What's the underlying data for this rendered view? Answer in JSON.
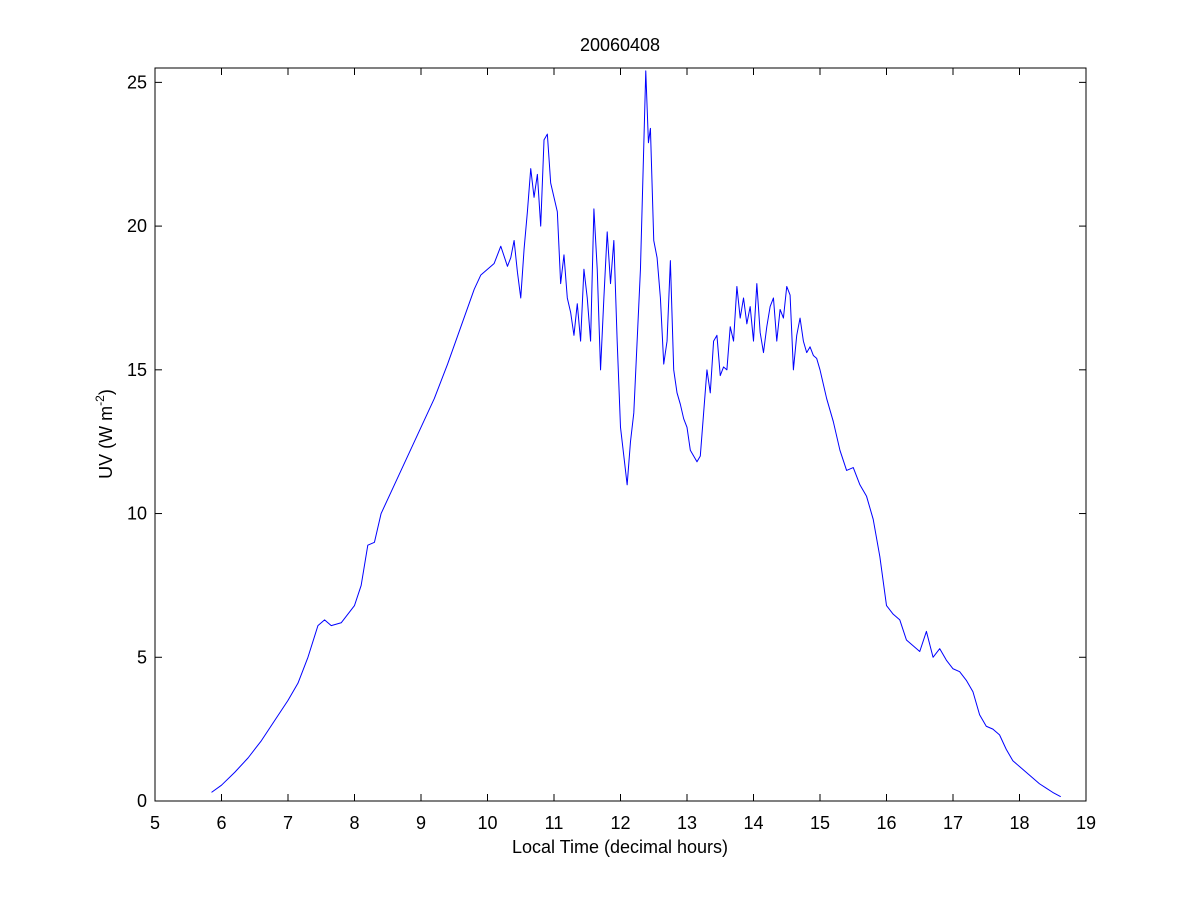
{
  "chart_data": {
    "type": "line",
    "title": "20060408",
    "xlabel": "Local Time (decimal hours)",
    "ylabel_main": "UV (W m",
    "ylabel_sup": "-2",
    "ylabel_close": ")",
    "xlim": [
      5,
      19
    ],
    "ylim": [
      0,
      25.5
    ],
    "xticks": [
      5,
      6,
      7,
      8,
      9,
      10,
      11,
      12,
      13,
      14,
      15,
      16,
      17,
      18,
      19
    ],
    "yticks": [
      0,
      5,
      10,
      15,
      20,
      25
    ],
    "grid": false,
    "line_color": "#0000ff",
    "series": [
      {
        "x": [
          5.85,
          6.0,
          6.2,
          6.4,
          6.6,
          6.8,
          7.0,
          7.15,
          7.3,
          7.45,
          7.55,
          7.65,
          7.8,
          7.9,
          8.0,
          8.1,
          8.2,
          8.3,
          8.4,
          8.6,
          8.8,
          9.0,
          9.2,
          9.4,
          9.6,
          9.8,
          9.9,
          10.0,
          10.1,
          10.2,
          10.3,
          10.35,
          10.4,
          10.45,
          10.5,
          10.55,
          10.6,
          10.65,
          10.7,
          10.75,
          10.8,
          10.85,
          10.9,
          10.95,
          11.0,
          11.05,
          11.1,
          11.15,
          11.2,
          11.25,
          11.3,
          11.35,
          11.4,
          11.45,
          11.5,
          11.55,
          11.6,
          11.65,
          11.7,
          11.75,
          11.8,
          11.85,
          11.9,
          11.95,
          12.0,
          12.05,
          12.1,
          12.15,
          12.2,
          12.25,
          12.3,
          12.35,
          12.38,
          12.42,
          12.45,
          12.5,
          12.55,
          12.6,
          12.65,
          12.7,
          12.75,
          12.8,
          12.85,
          12.9,
          12.95,
          13.0,
          13.05,
          13.1,
          13.15,
          13.2,
          13.25,
          13.3,
          13.35,
          13.4,
          13.45,
          13.5,
          13.55,
          13.6,
          13.65,
          13.7,
          13.75,
          13.8,
          13.85,
          13.9,
          13.95,
          14.0,
          14.05,
          14.1,
          14.15,
          14.2,
          14.25,
          14.3,
          14.35,
          14.4,
          14.45,
          14.5,
          14.55,
          14.6,
          14.65,
          14.7,
          14.75,
          14.8,
          14.85,
          14.9,
          14.95,
          15.0,
          15.1,
          15.2,
          15.3,
          15.4,
          15.5,
          15.6,
          15.7,
          15.8,
          15.9,
          16.0,
          16.1,
          16.2,
          16.3,
          16.4,
          16.5,
          16.6,
          16.7,
          16.8,
          16.9,
          17.0,
          17.1,
          17.2,
          17.3,
          17.4,
          17.5,
          17.6,
          17.7,
          17.8,
          17.9,
          18.0,
          18.1,
          18.2,
          18.3,
          18.4,
          18.5,
          18.62
        ],
        "y": [
          0.3,
          0.55,
          1.0,
          1.5,
          2.1,
          2.8,
          3.5,
          4.1,
          5.0,
          6.1,
          6.3,
          6.1,
          6.2,
          6.5,
          6.8,
          7.5,
          8.9,
          9.0,
          10.0,
          11.0,
          12.0,
          13.0,
          14.0,
          15.2,
          16.5,
          17.8,
          18.3,
          18.5,
          18.7,
          19.3,
          18.6,
          18.9,
          19.5,
          18.4,
          17.5,
          19.2,
          20.5,
          22.0,
          21.0,
          21.8,
          20.0,
          23.0,
          23.2,
          21.5,
          21.0,
          20.5,
          18.0,
          19.0,
          17.5,
          17.0,
          16.2,
          17.3,
          16.0,
          18.5,
          17.5,
          16.0,
          20.6,
          18.5,
          15.0,
          17.5,
          19.8,
          18.0,
          19.5,
          16.0,
          13.0,
          12.0,
          11.0,
          12.5,
          13.5,
          16.0,
          18.5,
          22.8,
          25.4,
          22.9,
          23.4,
          19.5,
          18.9,
          17.5,
          15.2,
          16.0,
          18.8,
          15.0,
          14.2,
          13.8,
          13.3,
          13.0,
          12.2,
          12.0,
          11.8,
          12.0,
          13.5,
          15.0,
          14.2,
          16.0,
          16.2,
          14.8,
          15.1,
          15.0,
          16.5,
          16.0,
          17.9,
          16.8,
          17.5,
          16.6,
          17.2,
          16.0,
          18.0,
          16.3,
          15.6,
          16.5,
          17.2,
          17.5,
          16.0,
          17.1,
          16.8,
          17.9,
          17.6,
          15.0,
          16.2,
          16.8,
          16.0,
          15.6,
          15.8,
          15.5,
          15.4,
          15.0,
          14.0,
          13.2,
          12.2,
          11.5,
          11.6,
          11.0,
          10.6,
          9.8,
          8.5,
          6.8,
          6.5,
          6.3,
          5.6,
          5.4,
          5.2,
          5.9,
          5.0,
          5.3,
          4.9,
          4.6,
          4.5,
          4.2,
          3.8,
          3.0,
          2.6,
          2.5,
          2.3,
          1.8,
          1.4,
          1.2,
          1.0,
          0.8,
          0.6,
          0.45,
          0.3,
          0.15
        ]
      }
    ]
  }
}
